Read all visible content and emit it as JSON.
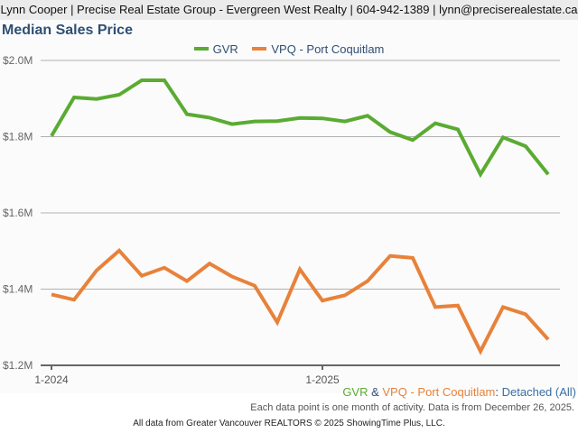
{
  "header": {
    "text": "Lynn Cooper | Precise Real Estate Group - Evergreen West Realty | 604-942-1389 | lynn@preciserealestate.ca"
  },
  "colors": {
    "gvr": "#5aab32",
    "vpq": "#e8823a",
    "title": "#2f4f73",
    "grid": "#b0b0b0",
    "baseline": "#666666"
  },
  "subtitle": {
    "gvr": "GVR",
    "amp": " & ",
    "vpq": "VPQ - Port Coquitlam",
    "colon": ": ",
    "type": "Detached (All)"
  },
  "note": "Each data point is one month of activity. Data is from December 26, 2025.",
  "source": "All data from Greater Vancouver REALTORS © 2025 ShowingTime Plus, LLC.",
  "chart_data": {
    "type": "line",
    "title": "Median Sales Price",
    "xlabel": "",
    "ylabel": "",
    "x": [
      "1-2024",
      "2-2024",
      "3-2024",
      "4-2024",
      "5-2024",
      "6-2024",
      "7-2024",
      "8-2024",
      "9-2024",
      "10-2024",
      "11-2024",
      "12-2024",
      "1-2025",
      "2-2025",
      "3-2025",
      "4-2025",
      "5-2025",
      "6-2025",
      "7-2025",
      "8-2025",
      "9-2025",
      "10-2025",
      "11-2025"
    ],
    "x_tick_labels": [
      "1-2024",
      "1-2025"
    ],
    "y_tick_labels": [
      "$1.2M",
      "$1.4M",
      "$1.6M",
      "$1.8M",
      "$2.0M"
    ],
    "y_ticks": [
      1.2,
      1.4,
      1.6,
      1.8,
      2.0
    ],
    "ylim": [
      1.2,
      2.0
    ],
    "y_units": "millions CAD",
    "grid": true,
    "legend_position": "top-center",
    "series": [
      {
        "name": "GVR",
        "color": "#5aab32",
        "values": [
          1.802,
          1.903,
          1.899,
          1.91,
          1.948,
          1.948,
          1.859,
          1.85,
          1.833,
          1.84,
          1.841,
          1.849,
          1.848,
          1.84,
          1.855,
          1.812,
          1.791,
          1.835,
          1.819,
          1.701,
          1.798,
          1.775,
          1.701
        ]
      },
      {
        "name": "VPQ - Port Coquitlam",
        "color": "#e8823a",
        "values": [
          1.386,
          1.372,
          1.449,
          1.501,
          1.435,
          1.456,
          1.421,
          1.467,
          1.433,
          1.409,
          1.313,
          1.452,
          1.37,
          1.384,
          1.421,
          1.487,
          1.482,
          1.353,
          1.357,
          1.237,
          1.353,
          1.334,
          1.268
        ]
      }
    ]
  }
}
